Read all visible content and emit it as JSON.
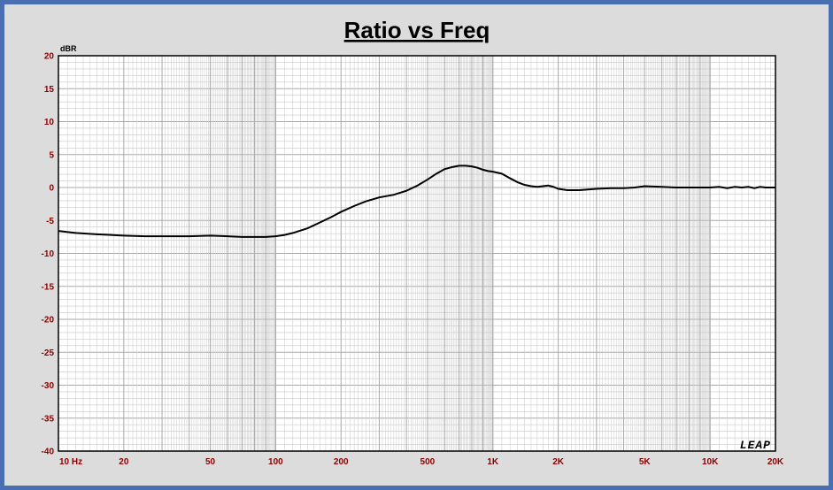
{
  "chart_data": {
    "type": "line",
    "title": "Ratio vs Freq",
    "ylabel": "dBR",
    "xlabel": "",
    "x_scale": "log",
    "xlim": [
      10,
      20000
    ],
    "ylim": [
      -40,
      20
    ],
    "grid": true,
    "x_ticks": [
      {
        "value": 10,
        "label": "10 Hz"
      },
      {
        "value": 20,
        "label": "20"
      },
      {
        "value": 50,
        "label": "50"
      },
      {
        "value": 100,
        "label": "100"
      },
      {
        "value": 200,
        "label": "200"
      },
      {
        "value": 500,
        "label": "500"
      },
      {
        "value": 1000,
        "label": "1K"
      },
      {
        "value": 2000,
        "label": "2K"
      },
      {
        "value": 5000,
        "label": "5K"
      },
      {
        "value": 10000,
        "label": "10K"
      },
      {
        "value": 20000,
        "label": "20K"
      }
    ],
    "y_ticks": [
      20,
      15,
      10,
      5,
      0,
      -5,
      -10,
      -15,
      -20,
      -25,
      -30,
      -35,
      -40
    ],
    "watermark": "LEAP",
    "colors": {
      "frame": "#4a6fb0",
      "panel": "#dcdcdc",
      "plot_bg": "#ffffff",
      "grid": "#c8c8c8",
      "line": "#000000",
      "tick_labels": "#8b0000"
    },
    "series": [
      {
        "x": [
          10,
          12,
          15,
          20,
          25,
          30,
          40,
          50,
          60,
          70,
          80,
          90,
          100,
          110,
          120,
          140,
          160,
          180,
          200,
          230,
          260,
          300,
          350,
          400,
          450,
          500,
          550,
          600,
          650,
          700,
          750,
          800,
          850,
          900,
          950,
          1000,
          1100,
          1200,
          1300,
          1400,
          1500,
          1600,
          1700,
          1800,
          1900,
          2000,
          2200,
          2500,
          3000,
          3500,
          4000,
          4500,
          5000,
          6000,
          7000,
          8000,
          9000,
          10000,
          11000,
          12000,
          13000,
          14000,
          15000,
          16000,
          17000,
          18000,
          19000,
          20000
        ],
        "y": [
          -6.6,
          -6.9,
          -7.1,
          -7.3,
          -7.4,
          -7.4,
          -7.4,
          -7.3,
          -7.4,
          -7.5,
          -7.5,
          -7.5,
          -7.4,
          -7.2,
          -6.9,
          -6.2,
          -5.3,
          -4.5,
          -3.7,
          -2.8,
          -2.1,
          -1.5,
          -1.1,
          -0.5,
          0.3,
          1.2,
          2.1,
          2.8,
          3.1,
          3.3,
          3.3,
          3.2,
          3.0,
          2.7,
          2.5,
          2.4,
          2.1,
          1.4,
          0.8,
          0.4,
          0.2,
          0.1,
          0.2,
          0.3,
          0.1,
          -0.2,
          -0.4,
          -0.4,
          -0.2,
          -0.1,
          -0.1,
          0.0,
          0.2,
          0.1,
          0.0,
          0.0,
          0.0,
          0.0,
          0.1,
          -0.1,
          0.1,
          0.0,
          0.1,
          -0.1,
          0.1,
          0.0,
          0.0,
          0.0
        ]
      }
    ]
  }
}
